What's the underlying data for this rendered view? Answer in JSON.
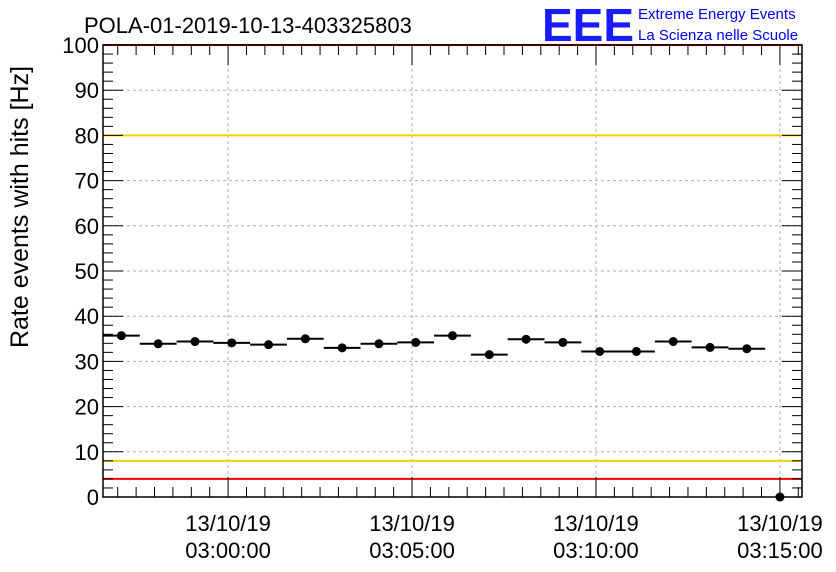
{
  "chart_data": {
    "type": "scatter",
    "title": "POLA-01-2019-10-13-403325803",
    "ylabel": "Rate events with hits [Hz]",
    "xlabel": "",
    "ylim": [
      0,
      100
    ],
    "yticks": [
      0,
      10,
      20,
      30,
      40,
      50,
      60,
      70,
      80,
      90,
      100
    ],
    "xticks": [
      {
        "minute": 0,
        "date": "13/10/19",
        "time": "03:00:00"
      },
      {
        "minute": 5,
        "date": "13/10/19",
        "time": "03:05:00"
      },
      {
        "minute": 10,
        "date": "13/10/19",
        "time": "03:10:00"
      },
      {
        "minute": 15,
        "date": "13/10/19",
        "time": "03:15:00"
      }
    ],
    "xlim_minutes": [
      -3.4,
      15.6
    ],
    "bin_width_minutes": 1,
    "grid": true,
    "series": [
      {
        "x_minutes": [
          -2.9,
          -1.9,
          -0.9,
          0.1,
          1.1,
          2.1,
          3.1,
          4.1,
          5.1,
          6.1,
          7.1,
          8.1,
          9.1,
          10.1,
          11.1,
          12.1,
          13.1,
          14.1
        ],
        "y": [
          35.7,
          33.9,
          34.4,
          34.1,
          33.7,
          35.0,
          33.0,
          33.9,
          34.2,
          35.7,
          31.5,
          34.9,
          34.2,
          32.2,
          32.2,
          34.4,
          33.1,
          32.8
        ],
        "marker": "circle",
        "color": "#000000"
      },
      {
        "x_minutes": [
          15.0
        ],
        "y": [
          0
        ],
        "marker": "circle",
        "color": "#000000"
      }
    ],
    "reference_lines": [
      {
        "y": 100,
        "color": "#ff0000"
      },
      {
        "y": 80,
        "color": "#ffcc00"
      },
      {
        "y": 8,
        "color": "#ffcc00"
      },
      {
        "y": 4,
        "color": "#ff0000"
      }
    ]
  },
  "logo": {
    "letters": "EEE",
    "line1": "Extreme Energy Events",
    "line2": "La Scienza nelle Scuole"
  }
}
